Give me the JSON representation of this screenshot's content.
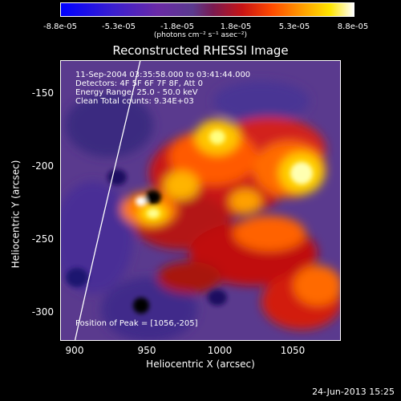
{
  "colorbar": {
    "ticks": [
      "-8.8e-05",
      "-5.3e-05",
      "-1.8e-05",
      "1.8e-05",
      "5.3e-05",
      "8.8e-05"
    ],
    "units": "(photons cm⁻² s⁻¹ asec⁻²)"
  },
  "title": "Reconstructed RHESSI Image",
  "info": {
    "time": "11-Sep-2004 03:35:58.000 to 03:41:44.000",
    "detectors": "Detectors: 4F 5F 6F 7F 8F, Att 0",
    "energy": "Energy Range: 25.0 - 50.0 keV",
    "clean": "Clean    Total counts: 9.34E+03",
    "peak": "Position of Peak = [1056,-205]"
  },
  "axes": {
    "xlabel": "Heliocentric X (arcsec)",
    "ylabel": "Heliocentric Y (arcsec)",
    "xticks": [
      "900",
      "950",
      "1000",
      "1050"
    ],
    "yticks": [
      "-150",
      "-200",
      "-250",
      "-300"
    ]
  },
  "footer": "24-Jun-2013 15:25",
  "colors": {
    "background": "#000000",
    "axis": "#ffffff",
    "limb": "#ffffff"
  }
}
